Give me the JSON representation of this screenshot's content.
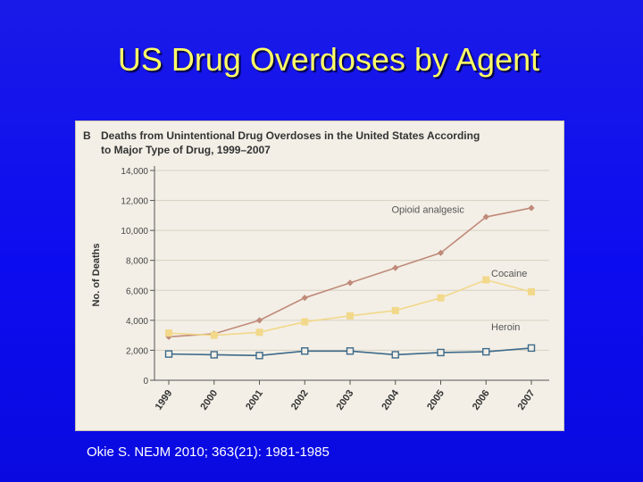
{
  "slide": {
    "title": "US Drug Overdoses by Agent",
    "citation": "Okie S. NEJM 2010; 363(21): 1981-1985"
  },
  "chart_data": {
    "type": "line",
    "panel_letter": "B",
    "title_line1": "Deaths from Unintentional Drug Overdoses in the United States According",
    "title_line2": "to Major Type of Drug, 1999–2007",
    "ylabel": "No. of Deaths",
    "xlabel": "",
    "ylim": [
      0,
      14000
    ],
    "yticks": [
      0,
      2000,
      4000,
      6000,
      8000,
      10000,
      12000,
      14000
    ],
    "ytick_labels": [
      "0",
      "2,000",
      "4,000",
      "6,000",
      "8,000",
      "10,000",
      "12,000",
      "14,000"
    ],
    "x": [
      "1999",
      "2000",
      "2001",
      "2002",
      "2003",
      "2004",
      "2005",
      "2006",
      "2007"
    ],
    "series": [
      {
        "name": "Opioid analgesic",
        "marker": "diamond",
        "color": "#c08a7a",
        "values": [
          2900,
          3100,
          4000,
          5500,
          6500,
          7500,
          8500,
          10900,
          11500
        ]
      },
      {
        "name": "Cocaine",
        "marker": "square",
        "color": "#f2d88a",
        "values": [
          3150,
          3000,
          3200,
          3900,
          4300,
          4650,
          5500,
          6700,
          5900
        ]
      },
      {
        "name": "Heroin",
        "marker": "open-square",
        "color": "#3d6a8a",
        "values": [
          1750,
          1700,
          1650,
          1950,
          1950,
          1700,
          1850,
          1900,
          2150
        ]
      }
    ]
  }
}
